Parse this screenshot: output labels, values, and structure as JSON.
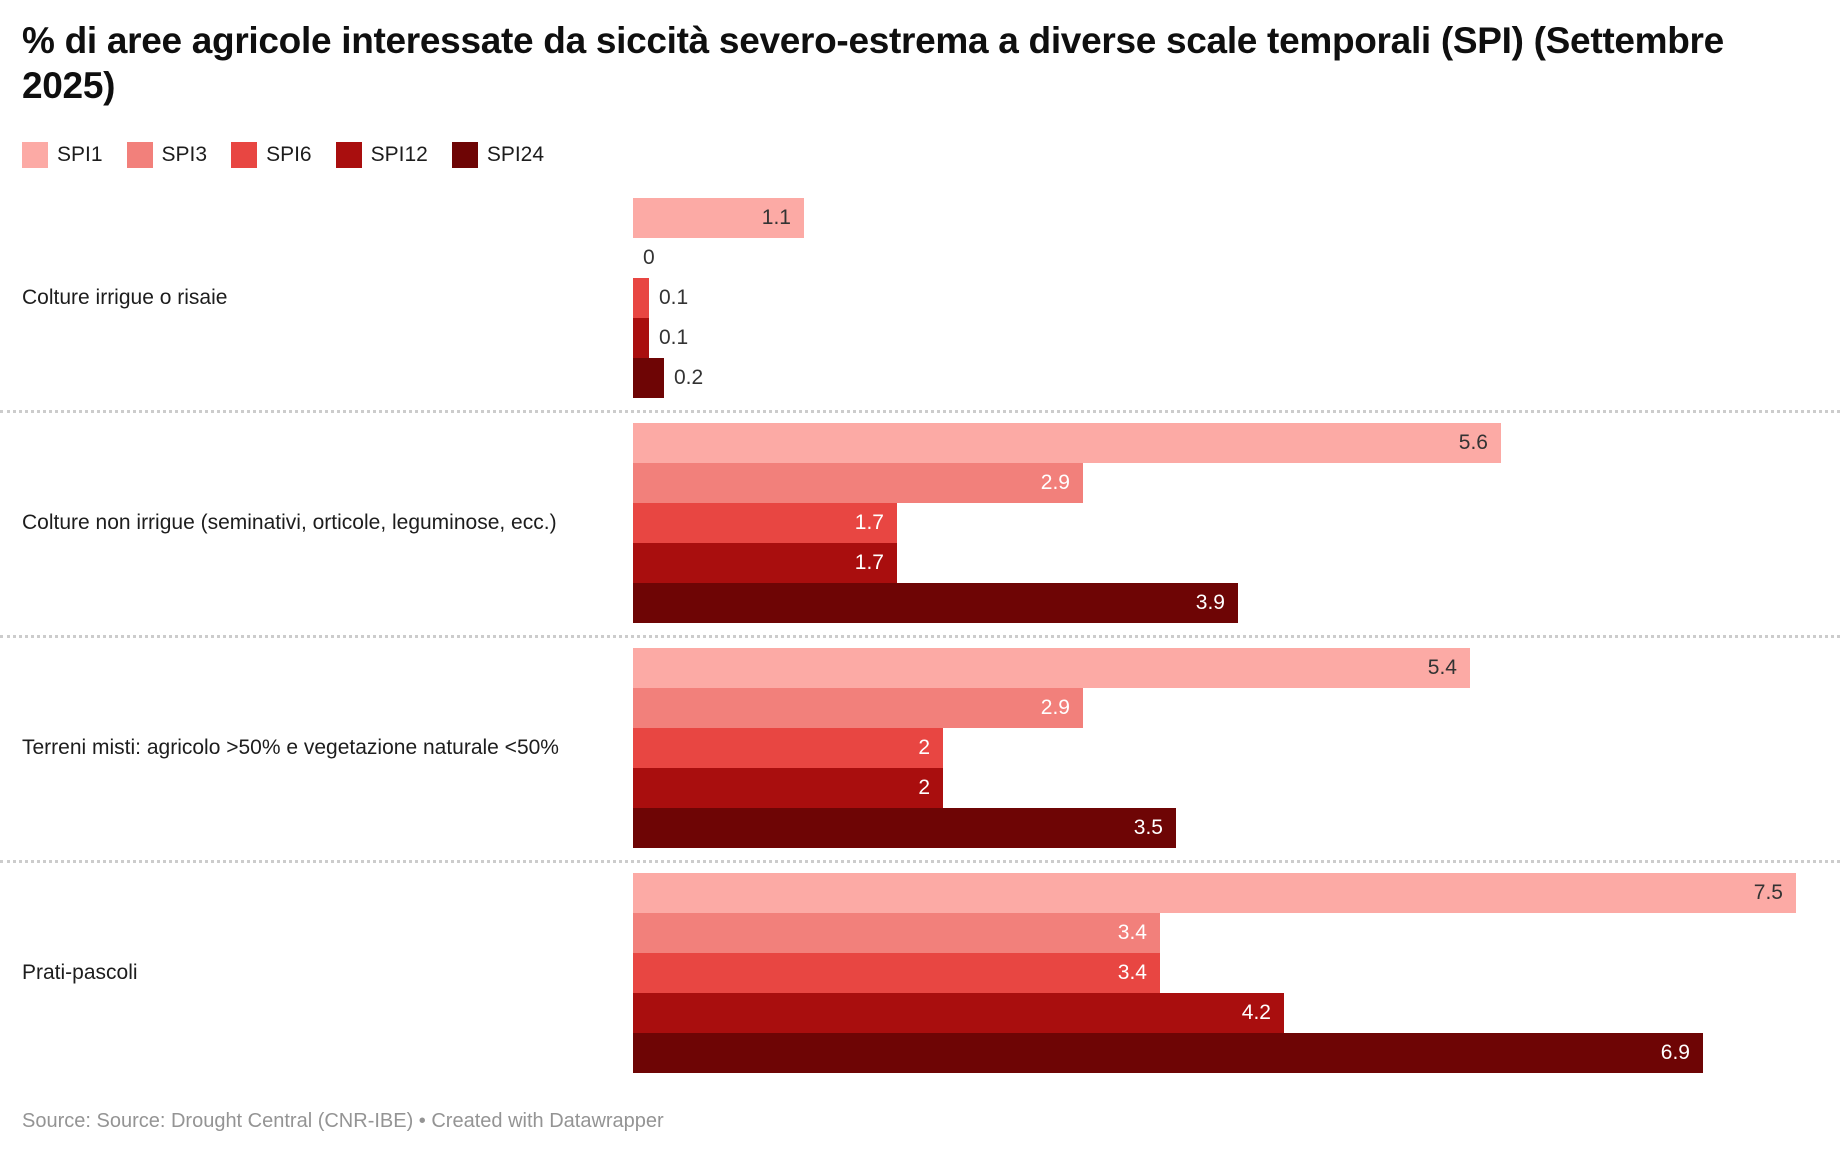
{
  "header": {
    "title": "% di aree agricole interessate da siccità severo-estrema a diverse scale temporali (SPI) (Settembre 2025)"
  },
  "footer": {
    "text": "Source: Source: Drought Central (CNR-IBE) • Created with Datawrapper"
  },
  "colors": {
    "spi1": "#fcaaa5",
    "spi3": "#f2807b",
    "spi6": "#e84642",
    "spi12": "#a90e0e",
    "spi24": "#6e0505",
    "value_label_dark": "#333333",
    "value_label_light": "#ffffff",
    "divider": "#cccccc",
    "footer_text": "#949494"
  },
  "chart_data": {
    "type": "bar",
    "orientation": "horizontal",
    "title": "% di aree agricole interessate da siccità severo-estrema a diverse scale temporali (SPI) (Settembre 2025)",
    "categories": [
      "Colture irrigue o risaie",
      "Colture non irrigue (seminativi, orticole, leguminose, ecc.)",
      "Terreni misti: agricolo >50% e vegetazione naturale <50%",
      "Prati-pascoli"
    ],
    "series": [
      {
        "name": "SPI1",
        "color": "#fcaaa5",
        "values": [
          1.1,
          5.6,
          5.4,
          7.5
        ]
      },
      {
        "name": "SPI3",
        "color": "#f2807b",
        "values": [
          0,
          2.9,
          2.9,
          3.4
        ]
      },
      {
        "name": "SPI6",
        "color": "#e84642",
        "values": [
          0.1,
          1.7,
          2,
          3.4
        ]
      },
      {
        "name": "SPI12",
        "color": "#a90e0e",
        "values": [
          0.1,
          1.7,
          2,
          4.2
        ]
      },
      {
        "name": "SPI24",
        "color": "#6e0505",
        "values": [
          0.2,
          3.9,
          3.5,
          6.9
        ]
      }
    ],
    "xlim": [
      0,
      7.58
    ],
    "grid": false,
    "legend_position": "top",
    "value_labels": true
  }
}
